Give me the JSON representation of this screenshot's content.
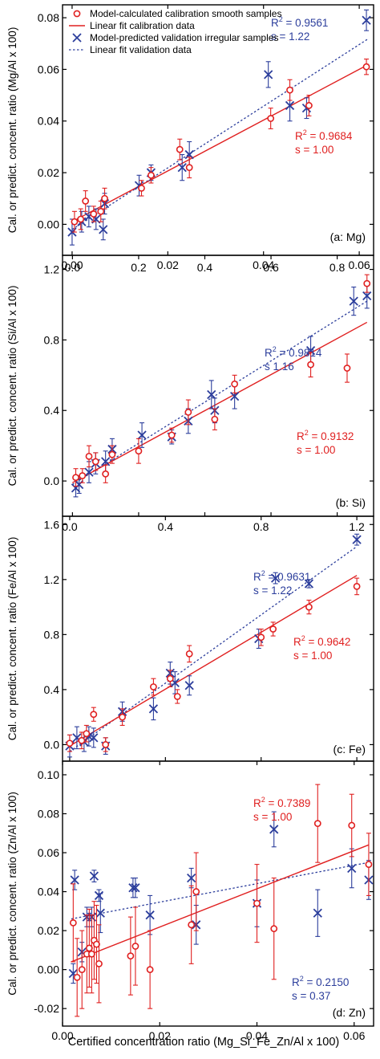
{
  "colors": {
    "calibration": "#e02020",
    "validation": "#2c3e9c",
    "axis": "#000000"
  },
  "legend": {
    "calibration_points": "Model-calculated calibration smooth samples",
    "calibration_fit": "Linear fit calibration data",
    "validation_points": "Model-predicted validation irregular samples",
    "validation_fit": "Linear fit validation data"
  },
  "xlabel": "Certified concentration ratio (Mg_Si_Fe_Zn/Al x 100)",
  "chart_data": [
    {
      "type": "scatter",
      "panel_label": "(a: Mg)",
      "ylabel": "Cal. or predict. concent. ratio (Mg/Al x 100)",
      "xlim": [
        -0.002,
        0.063
      ],
      "ylim": [
        -0.012,
        0.085
      ],
      "xticks": [
        0.0,
        0.02,
        0.04,
        0.06
      ],
      "xtick_labels": [
        "0.00",
        "0.02",
        "0.04",
        "0.06"
      ],
      "xticks_side": "bottom",
      "yticks": [
        0.0,
        0.02,
        0.04,
        0.06,
        0.08
      ],
      "ytick_labels": [
        "0.00",
        "0.02",
        "0.04",
        "0.06",
        "0.08"
      ],
      "calibration": {
        "points": [
          [
            0.0005,
            0.001
          ],
          [
            0.0018,
            0.002
          ],
          [
            0.0028,
            0.009
          ],
          [
            0.0045,
            0.004
          ],
          [
            0.006,
            0.005
          ],
          [
            0.0068,
            0.01
          ],
          [
            0.0145,
            0.014
          ],
          [
            0.0165,
            0.019
          ],
          [
            0.0225,
            0.029
          ],
          [
            0.0245,
            0.022
          ],
          [
            0.0415,
            0.041
          ],
          [
            0.0455,
            0.052
          ],
          [
            0.0495,
            0.046
          ],
          [
            0.0615,
            0.061
          ]
        ],
        "errors": [
          0.004,
          0.004,
          0.004,
          0.003,
          0.004,
          0.004,
          0.003,
          0.003,
          0.004,
          0.004,
          0.004,
          0.004,
          0.004,
          0.003
        ],
        "fit": [
          [
            0.0,
            0.001
          ],
          [
            0.062,
            0.062
          ]
        ],
        "r2_label": "0.9684",
        "s_label": "s = 1.00"
      },
      "validation": {
        "points": [
          [
            0.0,
            -0.003
          ],
          [
            0.002,
            0.001
          ],
          [
            0.0035,
            0.003
          ],
          [
            0.005,
            0.002
          ],
          [
            0.0065,
            -0.002
          ],
          [
            0.0068,
            0.008
          ],
          [
            0.014,
            0.015
          ],
          [
            0.0165,
            0.02
          ],
          [
            0.023,
            0.022
          ],
          [
            0.0245,
            0.027
          ],
          [
            0.041,
            0.058
          ],
          [
            0.0455,
            0.046
          ],
          [
            0.049,
            0.045
          ],
          [
            0.0615,
            0.079
          ]
        ],
        "errors": [
          0.005,
          0.004,
          0.004,
          0.004,
          0.004,
          0.004,
          0.004,
          0.003,
          0.005,
          0.005,
          0.005,
          0.006,
          0.004,
          0.004
        ],
        "fit": [
          [
            0.0,
            -0.002
          ],
          [
            0.062,
            0.072
          ]
        ],
        "r2_label": "0.9561",
        "s_label": "s = 1.22"
      }
    },
    {
      "type": "scatter",
      "panel_label": "(b: Si)",
      "ylabel": "Cal. or predict. concent. ratio (Si/Al x 100)",
      "xlim": [
        -0.03,
        0.91
      ],
      "ylim": [
        -0.2,
        1.28
      ],
      "xticks": [
        0.0,
        0.2,
        0.4,
        0.6,
        0.8
      ],
      "xtick_labels": [
        "0.0",
        "0.2",
        "0.4",
        "0.6",
        "0.8"
      ],
      "xticks_side": "top",
      "yticks": [
        0.0,
        0.4,
        0.8,
        1.2
      ],
      "ytick_labels": [
        "0.0",
        "0.4",
        "0.8",
        "1.2"
      ],
      "calibration": {
        "points": [
          [
            0.01,
            0.02
          ],
          [
            0.03,
            0.03
          ],
          [
            0.05,
            0.14
          ],
          [
            0.07,
            0.11
          ],
          [
            0.1,
            0.04
          ],
          [
            0.12,
            0.15
          ],
          [
            0.2,
            0.17
          ],
          [
            0.3,
            0.26
          ],
          [
            0.35,
            0.39
          ],
          [
            0.43,
            0.35
          ],
          [
            0.49,
            0.55
          ],
          [
            0.72,
            0.66
          ],
          [
            0.83,
            0.64
          ],
          [
            0.89,
            1.12
          ]
        ],
        "errors": [
          0.05,
          0.04,
          0.06,
          0.05,
          0.05,
          0.05,
          0.07,
          0.04,
          0.07,
          0.06,
          0.05,
          0.07,
          0.08,
          0.05
        ],
        "fit": [
          [
            0.0,
            -0.01
          ],
          [
            0.89,
            0.9
          ]
        ],
        "r2_label": "0.9132",
        "s_label": "s = 1.00"
      },
      "validation": {
        "points": [
          [
            0.01,
            -0.04
          ],
          [
            0.02,
            -0.02
          ],
          [
            0.05,
            0.05
          ],
          [
            0.07,
            0.1
          ],
          [
            0.1,
            0.11
          ],
          [
            0.12,
            0.18
          ],
          [
            0.21,
            0.26
          ],
          [
            0.3,
            0.25
          ],
          [
            0.35,
            0.34
          ],
          [
            0.42,
            0.49
          ],
          [
            0.43,
            0.4
          ],
          [
            0.49,
            0.48
          ],
          [
            0.72,
            0.74
          ],
          [
            0.85,
            1.02
          ],
          [
            0.89,
            1.05
          ]
        ],
        "errors": [
          0.05,
          0.05,
          0.06,
          0.06,
          0.06,
          0.06,
          0.07,
          0.04,
          0.07,
          0.08,
          0.07,
          0.07,
          0.08,
          0.08,
          0.07
        ],
        "fit": [
          [
            0.0,
            -0.02
          ],
          [
            0.89,
            1.02
          ]
        ],
        "r2_label": "0.9814",
        "s_label": "s  1.16"
      }
    },
    {
      "type": "scatter",
      "panel_label": "(c: Fe)",
      "ylabel": "Cal. or predict. concent. ratio (Fe/Al x 100)",
      "xlim": [
        -0.03,
        1.27
      ],
      "ylim": [
        -0.12,
        1.66
      ],
      "xticks": [
        0.0,
        0.4,
        0.8,
        1.2
      ],
      "xtick_labels": [
        "0.0",
        "0.4",
        "0.8",
        "1.2"
      ],
      "xticks_side": "none",
      "yticks": [
        0.0,
        0.4,
        0.8,
        1.2,
        1.6
      ],
      "ytick_labels": [
        "0.0",
        "0.4",
        "0.8",
        "1.2",
        "1.6"
      ],
      "calibration": {
        "points": [
          [
            0.0,
            0.01
          ],
          [
            0.05,
            0.03
          ],
          [
            0.07,
            0.08
          ],
          [
            0.1,
            0.22
          ],
          [
            0.15,
            0.0
          ],
          [
            0.22,
            0.2
          ],
          [
            0.35,
            0.42
          ],
          [
            0.42,
            0.48
          ],
          [
            0.45,
            0.35
          ],
          [
            0.5,
            0.66
          ],
          [
            0.8,
            0.78
          ],
          [
            0.85,
            0.84
          ],
          [
            1.0,
            1.0
          ],
          [
            1.2,
            1.15
          ]
        ],
        "errors": [
          0.06,
          0.06,
          0.06,
          0.05,
          0.05,
          0.06,
          0.06,
          0.06,
          0.05,
          0.06,
          0.06,
          0.05,
          0.05,
          0.06
        ],
        "fit": [
          [
            0.0,
            -0.01
          ],
          [
            1.2,
            1.23
          ]
        ],
        "r2_label": "0.9642",
        "s_label": "s = 1.00"
      },
      "validation": {
        "points": [
          [
            0.0,
            -0.01
          ],
          [
            0.03,
            0.05
          ],
          [
            0.06,
            0.02
          ],
          [
            0.08,
            0.06
          ],
          [
            0.1,
            0.05
          ],
          [
            0.15,
            -0.01
          ],
          [
            0.22,
            0.24
          ],
          [
            0.35,
            0.26
          ],
          [
            0.42,
            0.52
          ],
          [
            0.44,
            0.45
          ],
          [
            0.5,
            0.43
          ],
          [
            0.79,
            0.77
          ],
          [
            0.86,
            1.21
          ],
          [
            1.0,
            1.17
          ],
          [
            1.2,
            1.49
          ]
        ],
        "errors": [
          0.08,
          0.08,
          0.07,
          0.07,
          0.07,
          0.06,
          0.07,
          0.08,
          0.08,
          0.08,
          0.07,
          0.07,
          0.04,
          0.03,
          0.04
        ],
        "fit": [
          [
            0.0,
            -0.05
          ],
          [
            1.2,
            1.44
          ]
        ],
        "r2_label": "0.9631",
        "s_label": "s = 1.22"
      }
    },
    {
      "type": "scatter",
      "panel_label": "(d: Zn)",
      "ylabel": "Cal. or predict. concent. ratio (Zn/Al x 100)",
      "xlim": [
        0.0,
        0.064
      ],
      "ylim": [
        -0.029,
        0.107
      ],
      "xticks": [
        0.0,
        0.02,
        0.04,
        0.06
      ],
      "xtick_labels": [
        "0.00",
        "0.02",
        "0.04",
        "0.06"
      ],
      "xticks_side": "bottom",
      "yticks": [
        -0.02,
        0.0,
        0.02,
        0.04,
        0.06,
        0.08,
        0.1
      ],
      "ytick_labels": [
        "-0.02",
        "0.00",
        "0.02",
        "0.04",
        "0.06",
        "0.08",
        "0.10"
      ],
      "calibration": {
        "points": [
          [
            0.0022,
            0.024
          ],
          [
            0.003,
            -0.004
          ],
          [
            0.004,
            0.0
          ],
          [
            0.005,
            0.008
          ],
          [
            0.0055,
            0.011
          ],
          [
            0.006,
            0.008
          ],
          [
            0.0065,
            0.015
          ],
          [
            0.007,
            0.013
          ],
          [
            0.0075,
            0.003
          ],
          [
            0.014,
            0.007
          ],
          [
            0.015,
            0.012
          ],
          [
            0.018,
            0.0
          ],
          [
            0.0265,
            0.023
          ],
          [
            0.0275,
            0.04
          ],
          [
            0.04,
            0.034
          ],
          [
            0.0435,
            0.021
          ],
          [
            0.0525,
            0.075
          ],
          [
            0.0595,
            0.074
          ],
          [
            0.063,
            0.054
          ]
        ],
        "errors": [
          0.02,
          0.02,
          0.02,
          0.02,
          0.02,
          0.02,
          0.02,
          0.02,
          0.02,
          0.02,
          0.02,
          0.02,
          0.02,
          0.02,
          0.02,
          0.026,
          0.02,
          0.016,
          0.016
        ],
        "fit": [
          [
            0.0018,
            0.004
          ],
          [
            0.063,
            0.064
          ]
        ],
        "r2_label": "0.7389",
        "s_label": "s = 1.00"
      },
      "validation": {
        "points": [
          [
            0.0022,
            -0.002
          ],
          [
            0.0025,
            0.046
          ],
          [
            0.004,
            0.009
          ],
          [
            0.005,
            0.027
          ],
          [
            0.006,
            0.027
          ],
          [
            0.0065,
            0.048
          ],
          [
            0.0075,
            0.038
          ],
          [
            0.0078,
            0.029
          ],
          [
            0.0145,
            0.042
          ],
          [
            0.015,
            0.042
          ],
          [
            0.018,
            0.028
          ],
          [
            0.0265,
            0.047
          ],
          [
            0.0275,
            0.023
          ],
          [
            0.04,
            0.034
          ],
          [
            0.0435,
            0.072
          ],
          [
            0.0525,
            0.029
          ],
          [
            0.0595,
            0.052
          ],
          [
            0.063,
            0.046
          ]
        ],
        "errors": [
          0.005,
          0.005,
          0.005,
          0.005,
          0.005,
          0.003,
          0.003,
          0.01,
          0.005,
          0.005,
          0.01,
          0.005,
          0.01,
          0.012,
          0.009,
          0.012,
          0.01,
          0.01
        ],
        "fit": [
          [
            0.0018,
            0.026
          ],
          [
            0.063,
            0.055
          ]
        ],
        "r2_label": "0.2150",
        "s_label": "s = 0.37"
      }
    }
  ]
}
